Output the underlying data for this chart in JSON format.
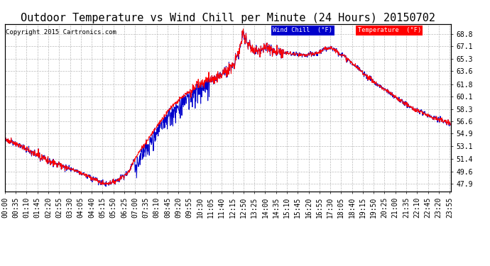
{
  "title": "Outdoor Temperature vs Wind Chill per Minute (24 Hours) 20150702",
  "copyright": "Copyright 2015 Cartronics.com",
  "ylabel_right_ticks": [
    47.9,
    49.6,
    51.4,
    53.1,
    54.9,
    56.6,
    58.3,
    60.1,
    61.8,
    63.6,
    65.3,
    67.1,
    68.8
  ],
  "x_labels": [
    "00:00",
    "00:35",
    "01:10",
    "01:45",
    "02:20",
    "02:55",
    "03:30",
    "04:05",
    "04:40",
    "05:15",
    "05:50",
    "06:25",
    "07:00",
    "07:35",
    "08:10",
    "08:45",
    "09:20",
    "09:55",
    "10:30",
    "11:05",
    "11:40",
    "12:15",
    "12:50",
    "13:25",
    "14:00",
    "14:35",
    "15:10",
    "15:45",
    "16:20",
    "16:55",
    "17:30",
    "18:05",
    "18:40",
    "19:15",
    "19:50",
    "20:25",
    "21:00",
    "21:35",
    "22:10",
    "22:45",
    "23:20",
    "23:55"
  ],
  "ylim_min": 46.8,
  "ylim_max": 70.2,
  "temp_color": "#ff0000",
  "windchill_color": "#0000cc",
  "background_color": "#ffffff",
  "grid_color": "#bbbbbb",
  "legend_windchill_bg": "#0000cc",
  "legend_temp_bg": "#ff0000",
  "title_fontsize": 11,
  "tick_fontsize": 7,
  "n_minutes": 1440
}
